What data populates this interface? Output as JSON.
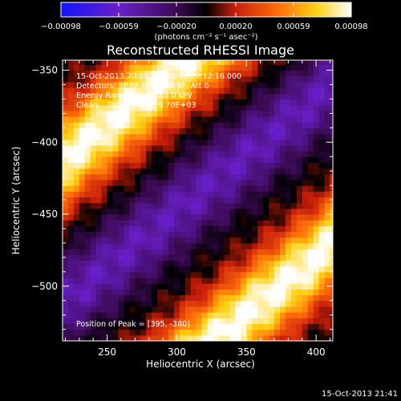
{
  "chart_data": {
    "type": "heatmap",
    "title": "Reconstructed RHESSI Image",
    "xlabel": "Heliocentric X (arcsec)",
    "ylabel": "Heliocentric Y (arcsec)",
    "xlim": [
      218,
      412
    ],
    "ylim": [
      -538,
      -343
    ],
    "x_ticks": [
      250,
      300,
      350,
      400
    ],
    "y_ticks": [
      -350,
      -400,
      -450,
      -500
    ],
    "colorbar": {
      "range": [
        -0.00098,
        0.00098
      ],
      "ticks": [
        "-0.00098",
        "-0.00059",
        "-0.00020",
        "0.00020",
        "0.00059",
        "0.00098"
      ],
      "unit": "(photons cm⁻² s⁻¹ asec⁻²)",
      "colormap": "blue-purple-black-red-yellow-white"
    },
    "annotations": [
      "15-Oct-2013 20:08:48.000 to 20:12:16.000",
      "Detectors: 3F 5F 6F 7F 8F 9F, Att 0",
      "Energy Range: 25.0 - 50.0 keV",
      "Clean    Total counts: 9.70E+03",
      "Position of Peak = [395, -380]"
    ],
    "field_structure": {
      "description": "diagonal bands running lower-left to upper-right",
      "positive_bands_offset": [
        -87,
        78
      ],
      "negative_band_offset": 0,
      "band_spacing_arcsec": 82
    }
  },
  "footer": {
    "timestamp": "15-Oct-2013 21:41"
  }
}
